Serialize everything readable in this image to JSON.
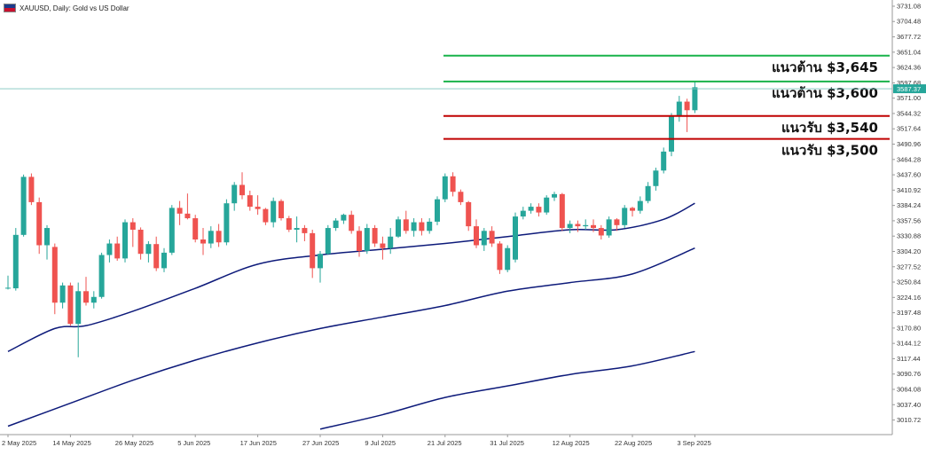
{
  "header": {
    "symbol_title": "XAUUSD, Daily:  Gold vs US Dollar"
  },
  "chart_data": {
    "type": "candlestick",
    "title": "XAUUSD, Daily:  Gold vs US Dollar",
    "colors": {
      "up": "#26a69a",
      "down": "#ef5350",
      "ma": "#0d1a7a",
      "support": "#c00000",
      "resistance": "#19b34a",
      "price_line": "#7fc4bf"
    },
    "current_price": "3587.37",
    "y_ticks": [
      "3731.08",
      "3704.48",
      "3677.72",
      "3651.04",
      "3624.36",
      "3597.68",
      "3571.00",
      "3544.32",
      "3517.64",
      "3490.96",
      "3464.28",
      "3437.60",
      "3410.92",
      "3384.24",
      "3357.56",
      "3330.88",
      "3304.20",
      "3277.52",
      "3250.84",
      "3224.16",
      "3197.48",
      "3170.80",
      "3144.12",
      "3117.44",
      "3090.76",
      "3064.08",
      "3037.40",
      "3010.72"
    ],
    "x_ticks": [
      {
        "label": "2 May 2025",
        "i": 0
      },
      {
        "label": "14 May 2025",
        "i": 8
      },
      {
        "label": "26 May 2025",
        "i": 16
      },
      {
        "label": "5 Jun 2025",
        "i": 24
      },
      {
        "label": "17 Jun 2025",
        "i": 32
      },
      {
        "label": "27 Jun 2025",
        "i": 40
      },
      {
        "label": "9 Jul 2025",
        "i": 48
      },
      {
        "label": "21 Jul 2025",
        "i": 56
      },
      {
        "label": "31 Jul 2025",
        "i": 64
      },
      {
        "label": "12 Aug 2025",
        "i": 72
      },
      {
        "label": "22 Aug 2025",
        "i": 80
      },
      {
        "label": "3 Sep 2025",
        "i": 88
      }
    ],
    "candles": [
      {
        "o": 3240,
        "h": 3262,
        "l": 3238,
        "c": 3241
      },
      {
        "o": 3240,
        "h": 3345,
        "l": 3236,
        "c": 3333
      },
      {
        "o": 3333,
        "h": 3438,
        "l": 3330,
        "c": 3434
      },
      {
        "o": 3434,
        "h": 3440,
        "l": 3385,
        "c": 3390
      },
      {
        "o": 3390,
        "h": 3398,
        "l": 3300,
        "c": 3315
      },
      {
        "o": 3315,
        "h": 3350,
        "l": 3290,
        "c": 3345
      },
      {
        "o": 3312,
        "h": 3318,
        "l": 3195,
        "c": 3215
      },
      {
        "o": 3215,
        "h": 3250,
        "l": 3205,
        "c": 3245
      },
      {
        "o": 3245,
        "h": 3250,
        "l": 3175,
        "c": 3178
      },
      {
        "o": 3178,
        "h": 3250,
        "l": 3120,
        "c": 3235
      },
      {
        "o": 3235,
        "h": 3260,
        "l": 3210,
        "c": 3215
      },
      {
        "o": 3215,
        "h": 3235,
        "l": 3205,
        "c": 3225
      },
      {
        "o": 3225,
        "h": 3302,
        "l": 3222,
        "c": 3298
      },
      {
        "o": 3298,
        "h": 3325,
        "l": 3285,
        "c": 3318
      },
      {
        "o": 3318,
        "h": 3330,
        "l": 3288,
        "c": 3292
      },
      {
        "o": 3292,
        "h": 3360,
        "l": 3285,
        "c": 3355
      },
      {
        "o": 3355,
        "h": 3362,
        "l": 3312,
        "c": 3342
      },
      {
        "o": 3342,
        "h": 3346,
        "l": 3290,
        "c": 3300
      },
      {
        "o": 3300,
        "h": 3322,
        "l": 3285,
        "c": 3317
      },
      {
        "o": 3317,
        "h": 3330,
        "l": 3270,
        "c": 3275
      },
      {
        "o": 3275,
        "h": 3310,
        "l": 3268,
        "c": 3302
      },
      {
        "o": 3302,
        "h": 3385,
        "l": 3298,
        "c": 3380
      },
      {
        "o": 3380,
        "h": 3392,
        "l": 3350,
        "c": 3370
      },
      {
        "o": 3370,
        "h": 3405,
        "l": 3360,
        "c": 3362
      },
      {
        "o": 3362,
        "h": 3368,
        "l": 3320,
        "c": 3325
      },
      {
        "o": 3325,
        "h": 3345,
        "l": 3298,
        "c": 3318
      },
      {
        "o": 3318,
        "h": 3348,
        "l": 3310,
        "c": 3340
      },
      {
        "o": 3340,
        "h": 3352,
        "l": 3312,
        "c": 3320
      },
      {
        "o": 3320,
        "h": 3395,
        "l": 3315,
        "c": 3388
      },
      {
        "o": 3388,
        "h": 3425,
        "l": 3375,
        "c": 3420
      },
      {
        "o": 3420,
        "h": 3442,
        "l": 3395,
        "c": 3402
      },
      {
        "o": 3402,
        "h": 3410,
        "l": 3375,
        "c": 3382
      },
      {
        "o": 3382,
        "h": 3402,
        "l": 3368,
        "c": 3378
      },
      {
        "o": 3378,
        "h": 3380,
        "l": 3350,
        "c": 3355
      },
      {
        "o": 3355,
        "h": 3398,
        "l": 3346,
        "c": 3392
      },
      {
        "o": 3392,
        "h": 3395,
        "l": 3358,
        "c": 3362
      },
      {
        "o": 3362,
        "h": 3366,
        "l": 3338,
        "c": 3342
      },
      {
        "o": 3342,
        "h": 3365,
        "l": 3320,
        "c": 3345
      },
      {
        "o": 3345,
        "h": 3350,
        "l": 3322,
        "c": 3336
      },
      {
        "o": 3336,
        "h": 3342,
        "l": 3258,
        "c": 3275
      },
      {
        "o": 3275,
        "h": 3305,
        "l": 3250,
        "c": 3300
      },
      {
        "o": 3300,
        "h": 3350,
        "l": 3298,
        "c": 3345
      },
      {
        "o": 3345,
        "h": 3362,
        "l": 3340,
        "c": 3358
      },
      {
        "o": 3358,
        "h": 3370,
        "l": 3352,
        "c": 3368
      },
      {
        "o": 3368,
        "h": 3375,
        "l": 3335,
        "c": 3340
      },
      {
        "o": 3340,
        "h": 3348,
        "l": 3295,
        "c": 3305
      },
      {
        "o": 3305,
        "h": 3352,
        "l": 3300,
        "c": 3345
      },
      {
        "o": 3345,
        "h": 3350,
        "l": 3312,
        "c": 3318
      },
      {
        "o": 3318,
        "h": 3330,
        "l": 3290,
        "c": 3310
      },
      {
        "o": 3310,
        "h": 3345,
        "l": 3300,
        "c": 3330
      },
      {
        "o": 3330,
        "h": 3365,
        "l": 3328,
        "c": 3360
      },
      {
        "o": 3360,
        "h": 3375,
        "l": 3335,
        "c": 3340
      },
      {
        "o": 3340,
        "h": 3362,
        "l": 3330,
        "c": 3355
      },
      {
        "o": 3355,
        "h": 3362,
        "l": 3332,
        "c": 3340
      },
      {
        "o": 3340,
        "h": 3362,
        "l": 3335,
        "c": 3356
      },
      {
        "o": 3356,
        "h": 3400,
        "l": 3350,
        "c": 3395
      },
      {
        "o": 3395,
        "h": 3440,
        "l": 3390,
        "c": 3435
      },
      {
        "o": 3435,
        "h": 3442,
        "l": 3400,
        "c": 3408
      },
      {
        "o": 3408,
        "h": 3412,
        "l": 3385,
        "c": 3390
      },
      {
        "o": 3390,
        "h": 3392,
        "l": 3340,
        "c": 3348
      },
      {
        "o": 3348,
        "h": 3360,
        "l": 3310,
        "c": 3315
      },
      {
        "o": 3315,
        "h": 3345,
        "l": 3305,
        "c": 3340
      },
      {
        "o": 3340,
        "h": 3348,
        "l": 3312,
        "c": 3318
      },
      {
        "o": 3318,
        "h": 3322,
        "l": 3265,
        "c": 3272
      },
      {
        "o": 3272,
        "h": 3315,
        "l": 3268,
        "c": 3310
      },
      {
        "o": 3290,
        "h": 3372,
        "l": 3285,
        "c": 3365
      },
      {
        "o": 3365,
        "h": 3382,
        "l": 3360,
        "c": 3375
      },
      {
        "o": 3375,
        "h": 3388,
        "l": 3370,
        "c": 3382
      },
      {
        "o": 3382,
        "h": 3388,
        "l": 3365,
        "c": 3372
      },
      {
        "o": 3372,
        "h": 3402,
        "l": 3368,
        "c": 3398
      },
      {
        "o": 3398,
        "h": 3408,
        "l": 3392,
        "c": 3404
      },
      {
        "o": 3404,
        "h": 3406,
        "l": 3340,
        "c": 3345
      },
      {
        "o": 3345,
        "h": 3358,
        "l": 3336,
        "c": 3352
      },
      {
        "o": 3352,
        "h": 3358,
        "l": 3338,
        "c": 3348
      },
      {
        "o": 3348,
        "h": 3360,
        "l": 3342,
        "c": 3350
      },
      {
        "o": 3350,
        "h": 3360,
        "l": 3338,
        "c": 3345
      },
      {
        "o": 3345,
        "h": 3350,
        "l": 3325,
        "c": 3332
      },
      {
        "o": 3332,
        "h": 3365,
        "l": 3328,
        "c": 3360
      },
      {
        "o": 3360,
        "h": 3362,
        "l": 3340,
        "c": 3350
      },
      {
        "o": 3350,
        "h": 3385,
        "l": 3345,
        "c": 3380
      },
      {
        "o": 3380,
        "h": 3382,
        "l": 3365,
        "c": 3375
      },
      {
        "o": 3375,
        "h": 3400,
        "l": 3370,
        "c": 3392
      },
      {
        "o": 3392,
        "h": 3425,
        "l": 3388,
        "c": 3418
      },
      {
        "o": 3418,
        "h": 3450,
        "l": 3410,
        "c": 3445
      },
      {
        "o": 3445,
        "h": 3485,
        "l": 3440,
        "c": 3478
      },
      {
        "o": 3478,
        "h": 3545,
        "l": 3470,
        "c": 3540
      },
      {
        "o": 3540,
        "h": 3575,
        "l": 3530,
        "c": 3565
      },
      {
        "o": 3565,
        "h": 3570,
        "l": 3512,
        "c": 3550
      },
      {
        "o": 3550,
        "h": 3600,
        "l": 3545,
        "c": 3590
      }
    ],
    "moving_averages": [
      {
        "name": "",
        "points": [
          [
            0,
            3130
          ],
          [
            6,
            3170
          ],
          [
            10,
            3175
          ],
          [
            16,
            3200
          ],
          [
            24,
            3240
          ],
          [
            32,
            3282
          ],
          [
            40,
            3298
          ],
          [
            48,
            3308
          ],
          [
            56,
            3318
          ],
          [
            64,
            3330
          ],
          [
            72,
            3342
          ],
          [
            78,
            3342
          ],
          [
            84,
            3360
          ],
          [
            88,
            3388
          ]
        ]
      },
      {
        "name": "",
        "points": [
          [
            0,
            3000
          ],
          [
            8,
            3040
          ],
          [
            16,
            3080
          ],
          [
            24,
            3115
          ],
          [
            32,
            3145
          ],
          [
            40,
            3170
          ],
          [
            48,
            3190
          ],
          [
            56,
            3210
          ],
          [
            64,
            3235
          ],
          [
            72,
            3250
          ],
          [
            80,
            3265
          ],
          [
            88,
            3310
          ]
        ]
      },
      {
        "name": "",
        "points": [
          [
            40,
            2995
          ],
          [
            48,
            3020
          ],
          [
            56,
            3050
          ],
          [
            64,
            3070
          ],
          [
            72,
            3090
          ],
          [
            80,
            3105
          ],
          [
            88,
            3130
          ]
        ]
      }
    ],
    "levels": [
      {
        "kind": "resistance",
        "price": 3645,
        "label": "แนวต้าน $3,645"
      },
      {
        "kind": "resistance",
        "price": 3600,
        "label": "แนวต้าน $3,600"
      },
      {
        "kind": "support",
        "price": 3540,
        "label": "แนวรับ $3,540"
      },
      {
        "kind": "support",
        "price": 3500,
        "label": "แนวรับ $3,500"
      }
    ]
  }
}
